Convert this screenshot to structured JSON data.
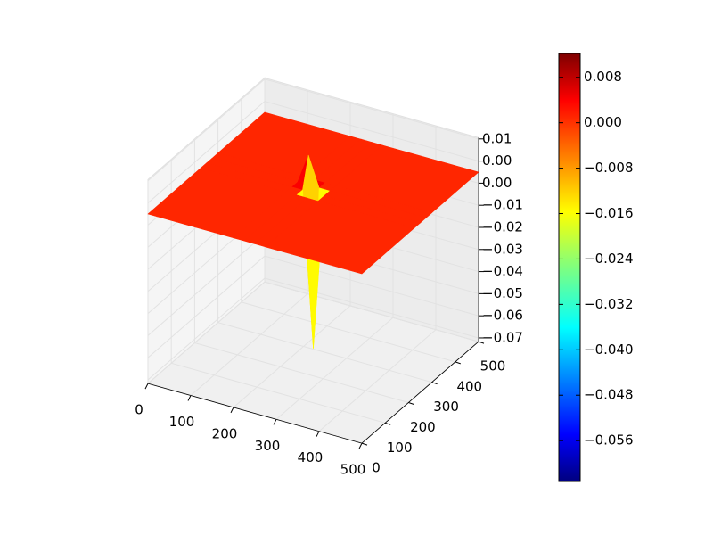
{
  "chart_data": {
    "type": "surface3d",
    "colormap": "jet",
    "x": [
      0,
      200,
      225,
      250,
      275,
      500
    ],
    "y": [
      0,
      225,
      250,
      275,
      300,
      500
    ],
    "z": [
      [
        0,
        0,
        0,
        0,
        0,
        0
      ],
      [
        0,
        0,
        0,
        0,
        0,
        0
      ],
      [
        0,
        0,
        0,
        -0.0632,
        0,
        0
      ],
      [
        0,
        0,
        0.0122,
        0,
        0,
        0
      ],
      [
        0,
        0,
        0,
        0,
        0,
        0
      ],
      [
        0,
        0,
        0,
        0,
        0,
        0
      ]
    ],
    "xlim": [
      0,
      500
    ],
    "ylim": [
      0,
      500
    ],
    "zlim": [
      -0.069,
      0.014
    ],
    "xticks": [
      0,
      100,
      200,
      300,
      400,
      500
    ],
    "yticks": [
      0,
      100,
      200,
      300,
      400,
      500
    ],
    "zticks": [
      {
        "value": 0.0135,
        "label": "0.01"
      },
      {
        "value": 0.0045,
        "label": "0.00"
      },
      {
        "value": -0.0045,
        "label": "0.00"
      },
      {
        "value": -0.0135,
        "label": "−0.01"
      },
      {
        "value": -0.0225,
        "label": "−0.02"
      },
      {
        "value": -0.0315,
        "label": "−0.03"
      },
      {
        "value": -0.0405,
        "label": "−0.04"
      },
      {
        "value": -0.0495,
        "label": "−0.05"
      },
      {
        "value": -0.0585,
        "label": "−0.06"
      },
      {
        "value": -0.0675,
        "label": "−0.07"
      }
    ],
    "grid": true,
    "colorbar": {
      "clim": [
        -0.0632,
        0.0122
      ],
      "ticks": [
        {
          "value": 0.008,
          "label": "0.008"
        },
        {
          "value": 0.0,
          "label": "0.000"
        },
        {
          "value": -0.008,
          "label": "−0.008"
        },
        {
          "value": -0.016,
          "label": "−0.016"
        },
        {
          "value": -0.024,
          "label": "−0.024"
        },
        {
          "value": -0.032,
          "label": "−0.032"
        },
        {
          "value": -0.04,
          "label": "−0.040"
        },
        {
          "value": -0.048,
          "label": "−0.048"
        },
        {
          "value": -0.056,
          "label": "−0.056"
        }
      ]
    }
  }
}
